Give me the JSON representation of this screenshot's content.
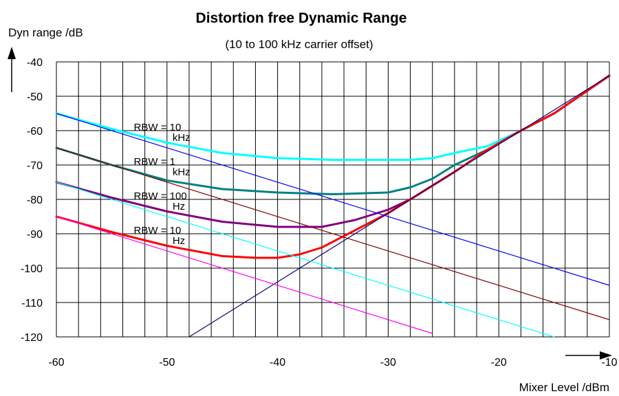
{
  "chart_data": {
    "type": "line",
    "title": "Distortion free Dynamic Range",
    "subtitle": "(10 to 100 kHz carrier offset)",
    "xlabel": "Mixer Level /dBm",
    "ylabel": "Dyn range /dB",
    "xlim": [
      -60,
      -10
    ],
    "ylim": [
      -120,
      -40
    ],
    "x_ticks": [
      "-60",
      "-50",
      "-40",
      "-30",
      "-20",
      "-10"
    ],
    "y_ticks": [
      "-40",
      "-50",
      "-60",
      "-70",
      "-80",
      "-90",
      "-100",
      "-110",
      "-120"
    ],
    "x_gridlines": [
      -60,
      -58,
      -56,
      -54,
      -52,
      -50,
      -48,
      -46,
      -44,
      -42,
      -40,
      -38,
      -36,
      -34,
      -32,
      -30,
      -28,
      -26,
      -24,
      -22,
      -20,
      -18,
      -16,
      -14,
      -12,
      -10
    ],
    "y_gridlines": [
      -40,
      -50,
      -60,
      -70,
      -80,
      -90,
      -100,
      -110,
      -120
    ],
    "grid": true,
    "annotations": [
      {
        "text": "RBW = 10",
        "x": -53,
        "y": -59
      },
      {
        "text": "kHz",
        "x": -49.5,
        "y": -62
      },
      {
        "text": "RBW = 1",
        "x": -53,
        "y": -69
      },
      {
        "text": "kHz",
        "x": -49.5,
        "y": -72
      },
      {
        "text": "RBW = 100",
        "x": -53,
        "y": -79
      },
      {
        "text": "Hz",
        "x": -49.5,
        "y": -82
      },
      {
        "text": "RBW = 10",
        "x": -53,
        "y": -89
      },
      {
        "text": "Hz",
        "x": -49.5,
        "y": -92
      }
    ],
    "series": [
      {
        "color": "#00ffff",
        "width": 3,
        "x": [
          -60,
          -55,
          -50,
          -45,
          -40,
          -35,
          -30,
          -28,
          -26,
          -24,
          -21,
          -18,
          -15,
          -10
        ],
        "y": [
          -55,
          -59.5,
          -63.5,
          -66.5,
          -68,
          -68.5,
          -68.5,
          -68.5,
          -68,
          -66.5,
          -64.5,
          -60,
          -55,
          -44
        ]
      },
      {
        "color": "#008080",
        "width": 3,
        "x": [
          -60,
          -55,
          -50,
          -45,
          -40,
          -35,
          -30,
          -28,
          -26,
          -24,
          -21,
          -18,
          -15,
          -10
        ],
        "y": [
          -65,
          -70,
          -74.5,
          -77,
          -78,
          -78.5,
          -78,
          -76.5,
          -74,
          -70,
          -65.5,
          -60,
          -55,
          -44
        ]
      },
      {
        "color": "#800080",
        "width": 3,
        "x": [
          -60,
          -55,
          -50,
          -45,
          -40,
          -36,
          -33,
          -30,
          -28,
          -26,
          -24,
          -21,
          -18,
          -15,
          -10
        ],
        "y": [
          -75,
          -79.5,
          -83.5,
          -86.5,
          -88,
          -88,
          -86,
          -83,
          -80,
          -76,
          -72,
          -65.5,
          -60,
          -55,
          -44
        ]
      },
      {
        "color": "#ff0000",
        "width": 3,
        "x": [
          -60,
          -55,
          -50,
          -45,
          -42,
          -40,
          -38,
          -36,
          -33,
          -30,
          -28,
          -26,
          -24,
          -21,
          -18,
          -15,
          -10
        ],
        "y": [
          -85,
          -89.5,
          -93.5,
          -96.5,
          -97,
          -97,
          -96,
          -94,
          -89,
          -84,
          -80,
          -76,
          -72,
          -65.5,
          -60,
          -55,
          -44
        ]
      },
      {
        "color": "#000080",
        "width": 1.2,
        "x": [
          -48,
          -10
        ],
        "y": [
          -120,
          -44
        ]
      },
      {
        "color": "#0000ff",
        "width": 1.2,
        "x": [
          -60,
          -10
        ],
        "y": [
          -55,
          -105
        ]
      },
      {
        "color": "#800000",
        "width": 1.2,
        "x": [
          -60,
          -10
        ],
        "y": [
          -65,
          -115
        ]
      },
      {
        "color": "#00ffff",
        "width": 1.2,
        "x": [
          -60,
          -15
        ],
        "y": [
          -75,
          -120
        ]
      },
      {
        "color": "#ff00ff",
        "width": 1.2,
        "x": [
          -60,
          -26
        ],
        "y": [
          -85,
          -119
        ]
      }
    ]
  }
}
